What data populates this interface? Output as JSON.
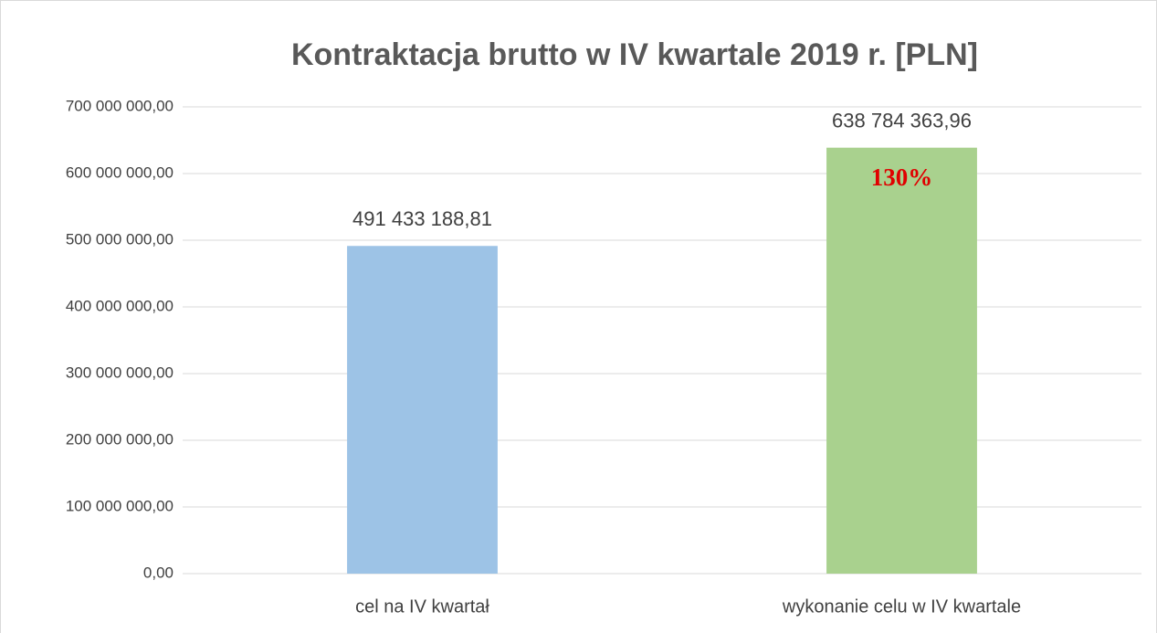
{
  "chart_data": {
    "type": "bar",
    "title": "Kontraktacja brutto w IV kwartale 2019 r. [PLN]",
    "categories": [
      "cel na IV kwartał",
      "wykonanie celu w IV kwartale"
    ],
    "values": [
      491433188.81,
      638784363.96
    ],
    "value_labels": [
      "491 433 188,81",
      "638 784 363,96"
    ],
    "colors": [
      "#9dc3e6",
      "#a9d18e"
    ],
    "annotation": "130%",
    "ylim": [
      0,
      700000000
    ],
    "yticks": [
      {
        "value": 0,
        "label": "0,00"
      },
      {
        "value": 100000000,
        "label": "100 000 000,00"
      },
      {
        "value": 200000000,
        "label": "200 000 000,00"
      },
      {
        "value": 300000000,
        "label": "300 000 000,00"
      },
      {
        "value": 400000000,
        "label": "400 000 000,00"
      },
      {
        "value": 500000000,
        "label": "500 000 000,00"
      },
      {
        "value": 600000000,
        "label": "600 000 000,00"
      },
      {
        "value": 700000000,
        "label": "700 000 000,00"
      }
    ],
    "grid": true
  }
}
